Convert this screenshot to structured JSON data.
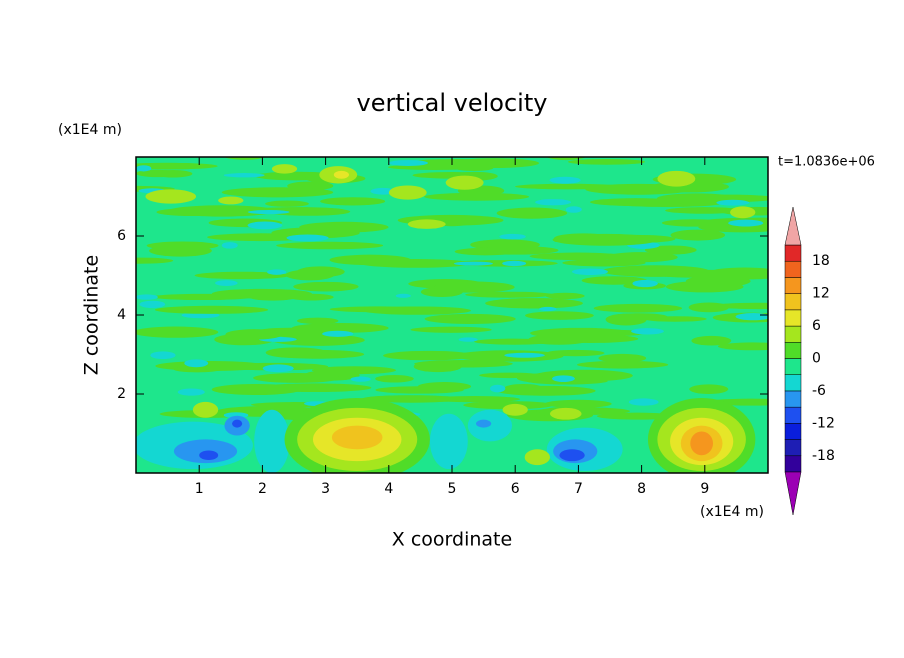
{
  "chart_data": {
    "type": "contour",
    "title": "vertical velocity",
    "x_label": "X coordinate",
    "y_label": "Z coordinate",
    "x_unit_label": "(x1E4 m)",
    "y_unit_label": "(x1E4 m)",
    "time_label": "t=1.0836e+06",
    "xlim": [
      0,
      10
    ],
    "xticks": [
      1,
      2,
      3,
      4,
      5,
      6,
      7,
      8,
      9
    ],
    "ylim": [
      0,
      8
    ],
    "yticks": [
      2,
      4,
      6
    ],
    "colorbar": {
      "levels": [
        -21,
        -18,
        -15,
        -12,
        -9,
        -6,
        -3,
        0,
        3,
        6,
        9,
        12,
        15,
        18,
        21
      ],
      "colors": [
        "#9b00b4",
        "#32009b",
        "#1e1eb4",
        "#0a1edc",
        "#1e50f0",
        "#2896f0",
        "#14d7d2",
        "#1ee68c",
        "#50dc28",
        "#a5e61e",
        "#e6e628",
        "#f0c31e",
        "#f5961e",
        "#f0641e",
        "#e12828",
        "#f0a5a5"
      ],
      "ticks": [
        -18,
        -12,
        -6,
        0,
        6,
        12,
        18
      ]
    }
  }
}
